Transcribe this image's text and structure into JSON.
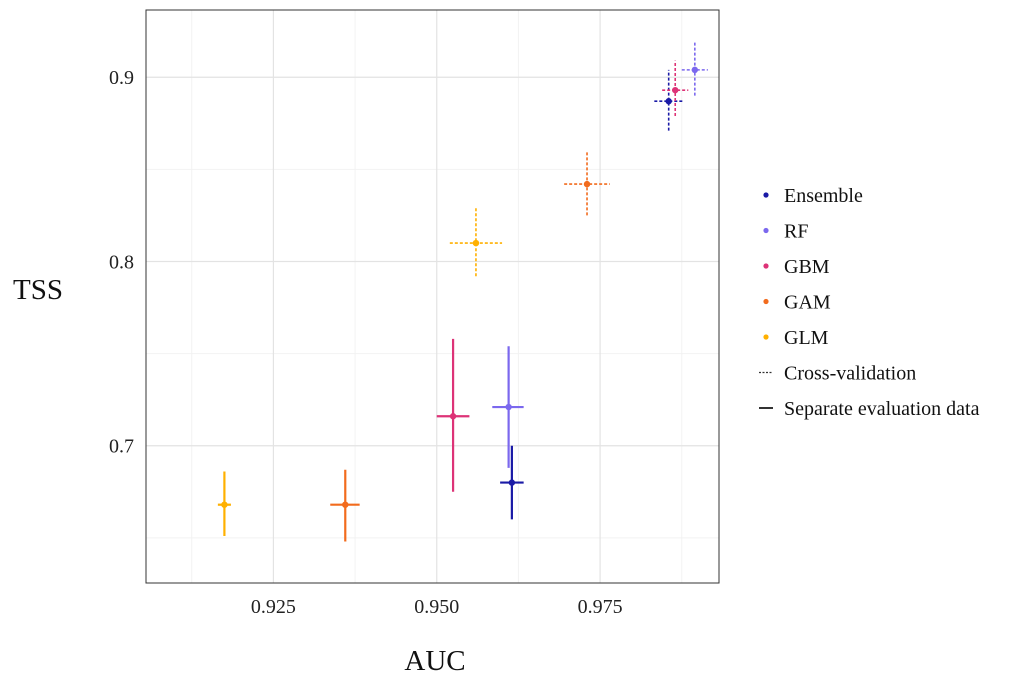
{
  "chart_data": {
    "type": "scatter",
    "xlabel": "AUC",
    "ylabel": "TSS",
    "xlim": [
      0.9055,
      0.9932
    ],
    "ylim": [
      0.6255,
      0.9365
    ],
    "x_ticks": [
      "0.925",
      "0.950",
      "0.975"
    ],
    "y_ticks": [
      "0.7",
      "0.8",
      "0.9"
    ],
    "grid": true,
    "legend_position": "right",
    "series": [
      {
        "name": "Ensemble",
        "color": "#1a1aa6",
        "cross_validation": {
          "x": 0.9855,
          "y": 0.887,
          "x_err": [
            0.9833,
            0.9878
          ],
          "y_err": [
            0.871,
            0.904
          ]
        },
        "separate_evaluation": {
          "x": 0.9615,
          "y": 0.68,
          "x_err": [
            0.9597,
            0.9633
          ],
          "y_err": [
            0.66,
            0.7
          ]
        }
      },
      {
        "name": "RF",
        "color": "#7b68ee",
        "cross_validation": {
          "x": 0.9895,
          "y": 0.904,
          "x_err": [
            0.9875,
            0.9915
          ],
          "y_err": [
            0.89,
            0.919
          ]
        },
        "separate_evaluation": {
          "x": 0.961,
          "y": 0.721,
          "x_err": [
            0.9585,
            0.9633
          ],
          "y_err": [
            0.688,
            0.754
          ]
        }
      },
      {
        "name": "GBM",
        "color": "#dd3377",
        "cross_validation": {
          "x": 0.9865,
          "y": 0.893,
          "x_err": [
            0.9845,
            0.9885
          ],
          "y_err": [
            0.879,
            0.909
          ]
        },
        "separate_evaluation": {
          "x": 0.9525,
          "y": 0.716,
          "x_err": [
            0.95,
            0.955
          ],
          "y_err": [
            0.675,
            0.758
          ]
        }
      },
      {
        "name": "GAM",
        "color": "#f26b1d",
        "cross_validation": {
          "x": 0.973,
          "y": 0.842,
          "x_err": [
            0.9695,
            0.9765
          ],
          "y_err": [
            0.825,
            0.86
          ]
        },
        "separate_evaluation": {
          "x": 0.936,
          "y": 0.668,
          "x_err": [
            0.9337,
            0.9382
          ],
          "y_err": [
            0.648,
            0.687
          ]
        }
      },
      {
        "name": "GLM",
        "color": "#ffb000",
        "cross_validation": {
          "x": 0.956,
          "y": 0.81,
          "x_err": [
            0.952,
            0.96
          ],
          "y_err": [
            0.792,
            0.83
          ]
        },
        "separate_evaluation": {
          "x": 0.9175,
          "y": 0.668,
          "x_err": [
            0.9165,
            0.9185
          ],
          "y_err": [
            0.651,
            0.686
          ]
        }
      }
    ],
    "line_types": [
      {
        "name": "Cross-validation",
        "style": "dotted"
      },
      {
        "name": "Separate evaluation data",
        "style": "solid"
      }
    ]
  }
}
